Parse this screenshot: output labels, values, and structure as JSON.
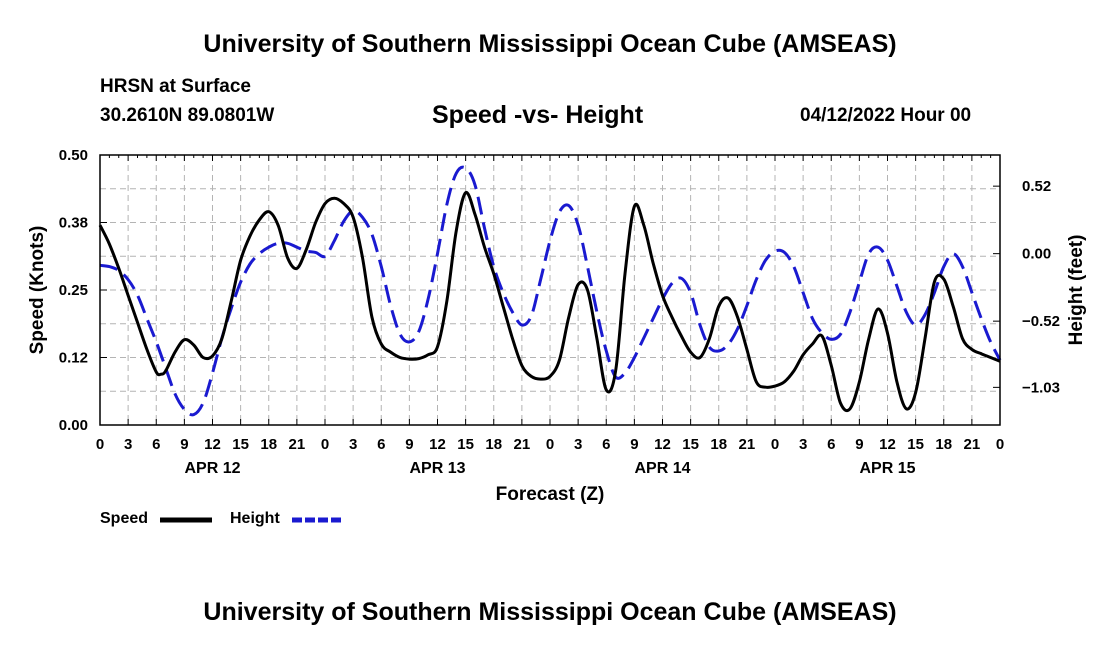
{
  "header": {
    "title": "University of Southern Mississippi Ocean Cube (AMSEAS)",
    "station": "HRSN at Surface",
    "coords": "30.2610N  89.0801W",
    "chart_title": "Speed -vs- Height",
    "run_time": "04/12/2022 Hour 00"
  },
  "footer": {
    "title": "University of Southern Mississippi Ocean Cube (AMSEAS)"
  },
  "colors": {
    "speed": "#000000",
    "height": "#1a1ad0",
    "grid": "#b4b4b4"
  },
  "chart_data": {
    "type": "line",
    "title": "Speed -vs- Height",
    "xlabel": "Forecast (Z)",
    "ylabel": "Speed (Knots)",
    "y2label": "Height (feet)",
    "xlim": [
      0,
      96
    ],
    "ylim": [
      0,
      0.5
    ],
    "y2lim": [
      -1.32,
      0.76
    ],
    "x_ticks": [
      0,
      3,
      6,
      9,
      12,
      15,
      18,
      21,
      24,
      27,
      30,
      33,
      36,
      39,
      42,
      45,
      48,
      51,
      54,
      57,
      60,
      63,
      66,
      69,
      72,
      75,
      78,
      81,
      84,
      87,
      90,
      93,
      96
    ],
    "x_tick_labels": [
      "0",
      "3",
      "6",
      "9",
      "12",
      "15",
      "18",
      "21",
      "0",
      "3",
      "6",
      "9",
      "12",
      "15",
      "18",
      "21",
      "0",
      "3",
      "6",
      "9",
      "12",
      "15",
      "18",
      "21",
      "0",
      "3",
      "6",
      "9",
      "12",
      "15",
      "18",
      "21",
      "0"
    ],
    "date_labels": [
      {
        "x": 12,
        "label": "APR 12"
      },
      {
        "x": 36,
        "label": "APR 13"
      },
      {
        "x": 60,
        "label": "APR 14"
      },
      {
        "x": 84,
        "label": "APR 15"
      }
    ],
    "y_ticks": [
      0,
      0.125,
      0.25,
      0.375,
      0.5
    ],
    "y_tick_labels": [
      "0.00",
      "0.12",
      "0.25",
      "0.38",
      "0.50"
    ],
    "y2_ticks": [
      0.52,
      0,
      -0.52,
      -1.03
    ],
    "y2_tick_labels": [
      "0.52",
      "0.00",
      "−0.52",
      "−1.03"
    ],
    "grid": true,
    "legend_position": "bottom-left",
    "series": [
      {
        "name": "Speed",
        "axis": "left",
        "style": "solid",
        "x": [
          0,
          1,
          2,
          3,
          4,
          5,
          6,
          6.5,
          7,
          8,
          9,
          10,
          11,
          12,
          13,
          14,
          15,
          16,
          17,
          18,
          19,
          20,
          21,
          22,
          23,
          24,
          25,
          26,
          27,
          28,
          29,
          30,
          31,
          32,
          33,
          34,
          35,
          36,
          37,
          38,
          39,
          40,
          41,
          42,
          43,
          44,
          45,
          46,
          47,
          48,
          49,
          50,
          51,
          52,
          53,
          54,
          55,
          56,
          57,
          58,
          59,
          60,
          61,
          62,
          63,
          64,
          65,
          66,
          67,
          68,
          69,
          70,
          71,
          72,
          73,
          74,
          75,
          76,
          77,
          78,
          79,
          80,
          81,
          82,
          83,
          84,
          85,
          86,
          87,
          88,
          89,
          90,
          91,
          92,
          93,
          94,
          95,
          96
        ],
        "values": [
          0.37,
          0.335,
          0.29,
          0.24,
          0.19,
          0.14,
          0.098,
          0.094,
          0.1,
          0.135,
          0.158,
          0.148,
          0.125,
          0.128,
          0.16,
          0.23,
          0.305,
          0.35,
          0.38,
          0.395,
          0.37,
          0.31,
          0.29,
          0.325,
          0.375,
          0.41,
          0.42,
          0.41,
          0.385,
          0.31,
          0.2,
          0.15,
          0.135,
          0.125,
          0.122,
          0.123,
          0.13,
          0.145,
          0.23,
          0.36,
          0.43,
          0.39,
          0.33,
          0.28,
          0.22,
          0.16,
          0.11,
          0.09,
          0.085,
          0.09,
          0.12,
          0.2,
          0.26,
          0.25,
          0.16,
          0.065,
          0.1,
          0.28,
          0.405,
          0.37,
          0.3,
          0.24,
          0.2,
          0.165,
          0.135,
          0.125,
          0.16,
          0.22,
          0.235,
          0.2,
          0.14,
          0.08,
          0.07,
          0.072,
          0.08,
          0.1,
          0.13,
          0.15,
          0.165,
          0.11,
          0.04,
          0.03,
          0.08,
          0.16,
          0.215,
          0.17,
          0.08,
          0.03,
          0.06,
          0.16,
          0.265,
          0.27,
          0.22,
          0.16,
          0.14,
          0.132,
          0.125,
          0.118
        ]
      },
      {
        "name": "Height",
        "axis": "right",
        "style": "dashed",
        "x": [
          0,
          1,
          2,
          3,
          4,
          5,
          6,
          7,
          8,
          9,
          10,
          11,
          12,
          13,
          14,
          15,
          16,
          17,
          18,
          19,
          20,
          21,
          22,
          23,
          24,
          25,
          26,
          27,
          28,
          29,
          30,
          31,
          32,
          33,
          34,
          35,
          36,
          37,
          38,
          39,
          40,
          41,
          42,
          43,
          44,
          45,
          46,
          47,
          48,
          49,
          50,
          51,
          52,
          53,
          54,
          55,
          56,
          57,
          58,
          59,
          60,
          61,
          62,
          63,
          64,
          65,
          66,
          67,
          68,
          69,
          70,
          71,
          72,
          73,
          74,
          75,
          76,
          77,
          78,
          79,
          80,
          81,
          82,
          83,
          84,
          85,
          86,
          87,
          88,
          89,
          90,
          91,
          92,
          93,
          94,
          95,
          96
        ],
        "values": [
          -0.09,
          -0.1,
          -0.13,
          -0.2,
          -0.32,
          -0.5,
          -0.68,
          -0.88,
          -1.08,
          -1.2,
          -1.24,
          -1.15,
          -0.92,
          -0.65,
          -0.42,
          -0.22,
          -0.08,
          0.0,
          0.05,
          0.08,
          0.08,
          0.05,
          0.02,
          0.01,
          -0.02,
          0.1,
          0.25,
          0.33,
          0.28,
          0.15,
          -0.1,
          -0.4,
          -0.62,
          -0.68,
          -0.6,
          -0.35,
          0.0,
          0.38,
          0.62,
          0.66,
          0.53,
          0.2,
          -0.1,
          -0.3,
          -0.45,
          -0.55,
          -0.48,
          -0.2,
          0.1,
          0.32,
          0.37,
          0.22,
          -0.1,
          -0.45,
          -0.75,
          -0.95,
          -0.92,
          -0.8,
          -0.65,
          -0.5,
          -0.35,
          -0.23,
          -0.19,
          -0.3,
          -0.55,
          -0.72,
          -0.75,
          -0.7,
          -0.58,
          -0.4,
          -0.2,
          -0.05,
          0.02,
          0.01,
          -0.1,
          -0.3,
          -0.5,
          -0.61,
          -0.66,
          -0.62,
          -0.45,
          -0.22,
          0.0,
          0.05,
          -0.05,
          -0.25,
          -0.45,
          -0.55,
          -0.47,
          -0.3,
          -0.1,
          0.0,
          -0.1,
          -0.3,
          -0.5,
          -0.68,
          -0.82
        ]
      }
    ]
  }
}
